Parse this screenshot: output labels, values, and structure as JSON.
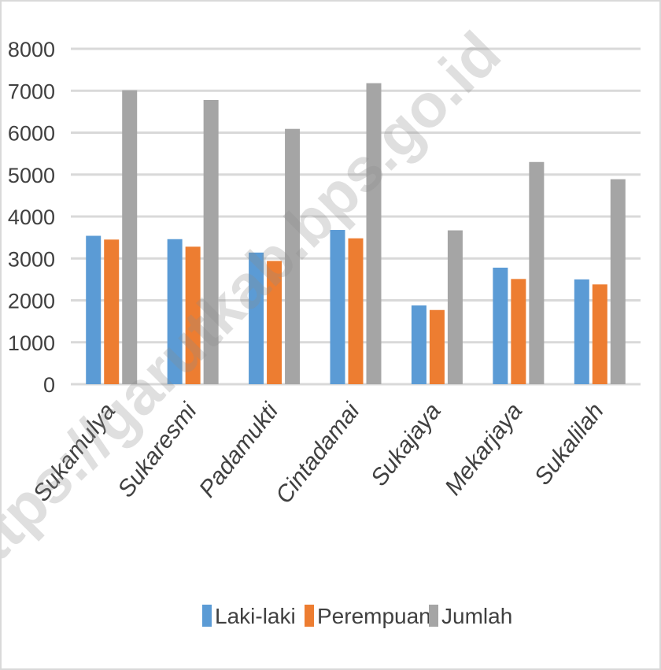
{
  "watermark": "https://garutkab.bps.go.id",
  "chart_data": {
    "type": "bar",
    "categories": [
      "Sukamulya",
      "Sukaresmi",
      "Padamukti",
      "Cintadamai",
      "Sukajaya",
      "Mekarjaya",
      "Sukalilah"
    ],
    "series": [
      {
        "name": "Laki-laki",
        "color": "#5b9bd5",
        "values": [
          3540,
          3460,
          3140,
          3680,
          1880,
          2780,
          2500
        ]
      },
      {
        "name": "Perempuan",
        "color": "#ed7d31",
        "values": [
          3450,
          3280,
          2940,
          3480,
          1770,
          2510,
          2380
        ]
      },
      {
        "name": "Jumlah",
        "color": "#a5a5a5",
        "values": [
          7010,
          6780,
          6090,
          7180,
          3670,
          5300,
          4890
        ]
      }
    ],
    "yticks": [
      "0",
      "1000",
      "2000",
      "3000",
      "4000",
      "5000",
      "6000",
      "7000",
      "8000"
    ],
    "ylim": [
      0,
      8000
    ],
    "grid": true,
    "legend": "bottom"
  }
}
